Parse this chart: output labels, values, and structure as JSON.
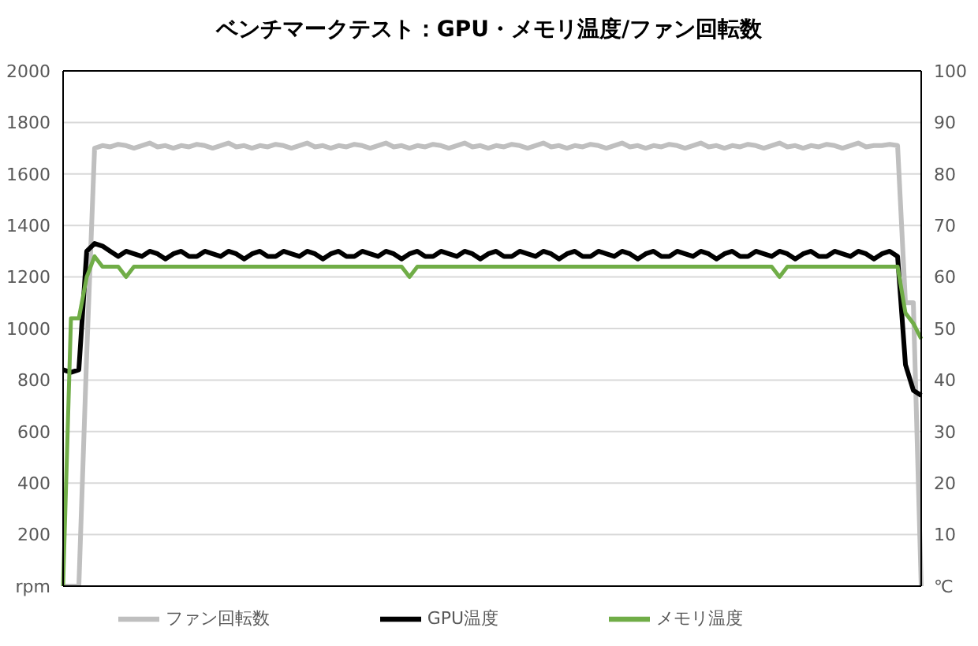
{
  "chart_data": {
    "type": "line",
    "title": "ベンチマークテスト：GPU・メモリ温度/ファン回転数",
    "categories": [
      null,
      null,
      null,
      null,
      null,
      null,
      null,
      null,
      null,
      null,
      null,
      null,
      null,
      null,
      null,
      null,
      null,
      null,
      null,
      null,
      null,
      null,
      null,
      null,
      null,
      null,
      null,
      null,
      null,
      null,
      null,
      null,
      null,
      null,
      null,
      null,
      null,
      null,
      null,
      null,
      null,
      null,
      null,
      null,
      null,
      null,
      null,
      null,
      null,
      null,
      null,
      null,
      null,
      null,
      null,
      null,
      null,
      null,
      null,
      null,
      null,
      null,
      null,
      null,
      null,
      null,
      null,
      null,
      null,
      null,
      null,
      null,
      null,
      null,
      null,
      null,
      null,
      null,
      null,
      null,
      null,
      null,
      null,
      null,
      null,
      null,
      null,
      null,
      null,
      null,
      null,
      null,
      null,
      null,
      null,
      null,
      null,
      null,
      null,
      null,
      null,
      null,
      null,
      null,
      null,
      null,
      null,
      null,
      null,
      null
    ],
    "series": [
      {
        "name": "ファン回転数",
        "color": "#bfbfbf",
        "values": [
          0,
          0,
          0,
          900,
          1700,
          1710,
          1705,
          1715,
          1710,
          1700,
          1710,
          1720,
          1705,
          1710,
          1700,
          1710,
          1705,
          1715,
          1710,
          1700,
          1710,
          1720,
          1705,
          1710,
          1700,
          1710,
          1705,
          1715,
          1710,
          1700,
          1710,
          1720,
          1705,
          1710,
          1700,
          1710,
          1705,
          1715,
          1710,
          1700,
          1710,
          1720,
          1705,
          1710,
          1700,
          1710,
          1705,
          1715,
          1710,
          1700,
          1710,
          1720,
          1705,
          1710,
          1700,
          1710,
          1705,
          1715,
          1710,
          1700,
          1710,
          1720,
          1705,
          1710,
          1700,
          1710,
          1705,
          1715,
          1710,
          1700,
          1710,
          1720,
          1705,
          1710,
          1700,
          1710,
          1705,
          1715,
          1710,
          1700,
          1710,
          1720,
          1705,
          1710,
          1700,
          1710,
          1705,
          1715,
          1710,
          1700,
          1710,
          1720,
          1705,
          1710,
          1700,
          1710,
          1705,
          1715,
          1710,
          1700,
          1710,
          1720,
          1705,
          1710,
          1710,
          1715,
          1710,
          1100,
          1100,
          0
        ]
      },
      {
        "name": "GPU温度",
        "color": "#000000",
        "axis": "y2",
        "values": [
          42,
          41.5,
          42,
          65,
          66.5,
          66,
          65,
          64,
          65,
          64.5,
          64,
          65,
          64.5,
          63.5,
          64.5,
          65,
          64,
          64,
          65,
          64.5,
          64,
          65,
          64.5,
          63.5,
          64.5,
          65,
          64,
          64,
          65,
          64.5,
          64,
          65,
          64.5,
          63.5,
          64.5,
          65,
          64,
          64,
          65,
          64.5,
          64,
          65,
          64.5,
          63.5,
          64.5,
          65,
          64,
          64,
          65,
          64.5,
          64,
          65,
          64.5,
          63.5,
          64.5,
          65,
          64,
          64,
          65,
          64.5,
          64,
          65,
          64.5,
          63.5,
          64.5,
          65,
          64,
          64,
          65,
          64.5,
          64,
          65,
          64.5,
          63.5,
          64.5,
          65,
          64,
          64,
          65,
          64.5,
          64,
          65,
          64.5,
          63.5,
          64.5,
          65,
          64,
          64,
          65,
          64.5,
          64,
          65,
          64.5,
          63.5,
          64.5,
          65,
          64,
          64,
          65,
          64.5,
          64,
          65,
          64.5,
          63.5,
          64.5,
          65,
          64,
          43,
          38,
          37
        ]
      },
      {
        "name": "メモリ温度",
        "color": "#70ad47",
        "axis": "y2",
        "values": [
          0,
          52,
          52,
          60,
          64,
          62,
          62,
          62,
          60,
          62,
          62,
          62,
          62,
          62,
          62,
          62,
          62,
          62,
          62,
          62,
          62,
          62,
          62,
          62,
          62,
          62,
          62,
          62,
          62,
          62,
          62,
          62,
          62,
          62,
          62,
          62,
          62,
          62,
          62,
          62,
          62,
          62,
          62,
          62,
          60,
          62,
          62,
          62,
          62,
          62,
          62,
          62,
          62,
          62,
          62,
          62,
          62,
          62,
          62,
          62,
          62,
          62,
          62,
          62,
          62,
          62,
          62,
          62,
          62,
          62,
          62,
          62,
          62,
          62,
          62,
          62,
          62,
          62,
          62,
          62,
          62,
          62,
          62,
          62,
          62,
          62,
          62,
          62,
          62,
          62,
          62,
          60,
          62,
          62,
          62,
          62,
          62,
          62,
          62,
          62,
          62,
          62,
          62,
          62,
          62,
          62,
          62,
          53,
          51,
          48
        ]
      }
    ],
    "ylim": [
      0,
      2000
    ],
    "yticks": [
      {
        "value": 0,
        "label": "rpm"
      },
      200,
      400,
      600,
      800,
      1000,
      1200,
      1400,
      1600,
      1800,
      2000
    ],
    "y2lim": [
      0,
      100
    ],
    "y2ticks": [
      {
        "value": 0,
        "label": "℃"
      },
      10,
      20,
      30,
      40,
      50,
      60,
      70,
      80,
      90,
      100
    ],
    "grid": "y",
    "legend": "bottom",
    "tick_labels": "y"
  }
}
